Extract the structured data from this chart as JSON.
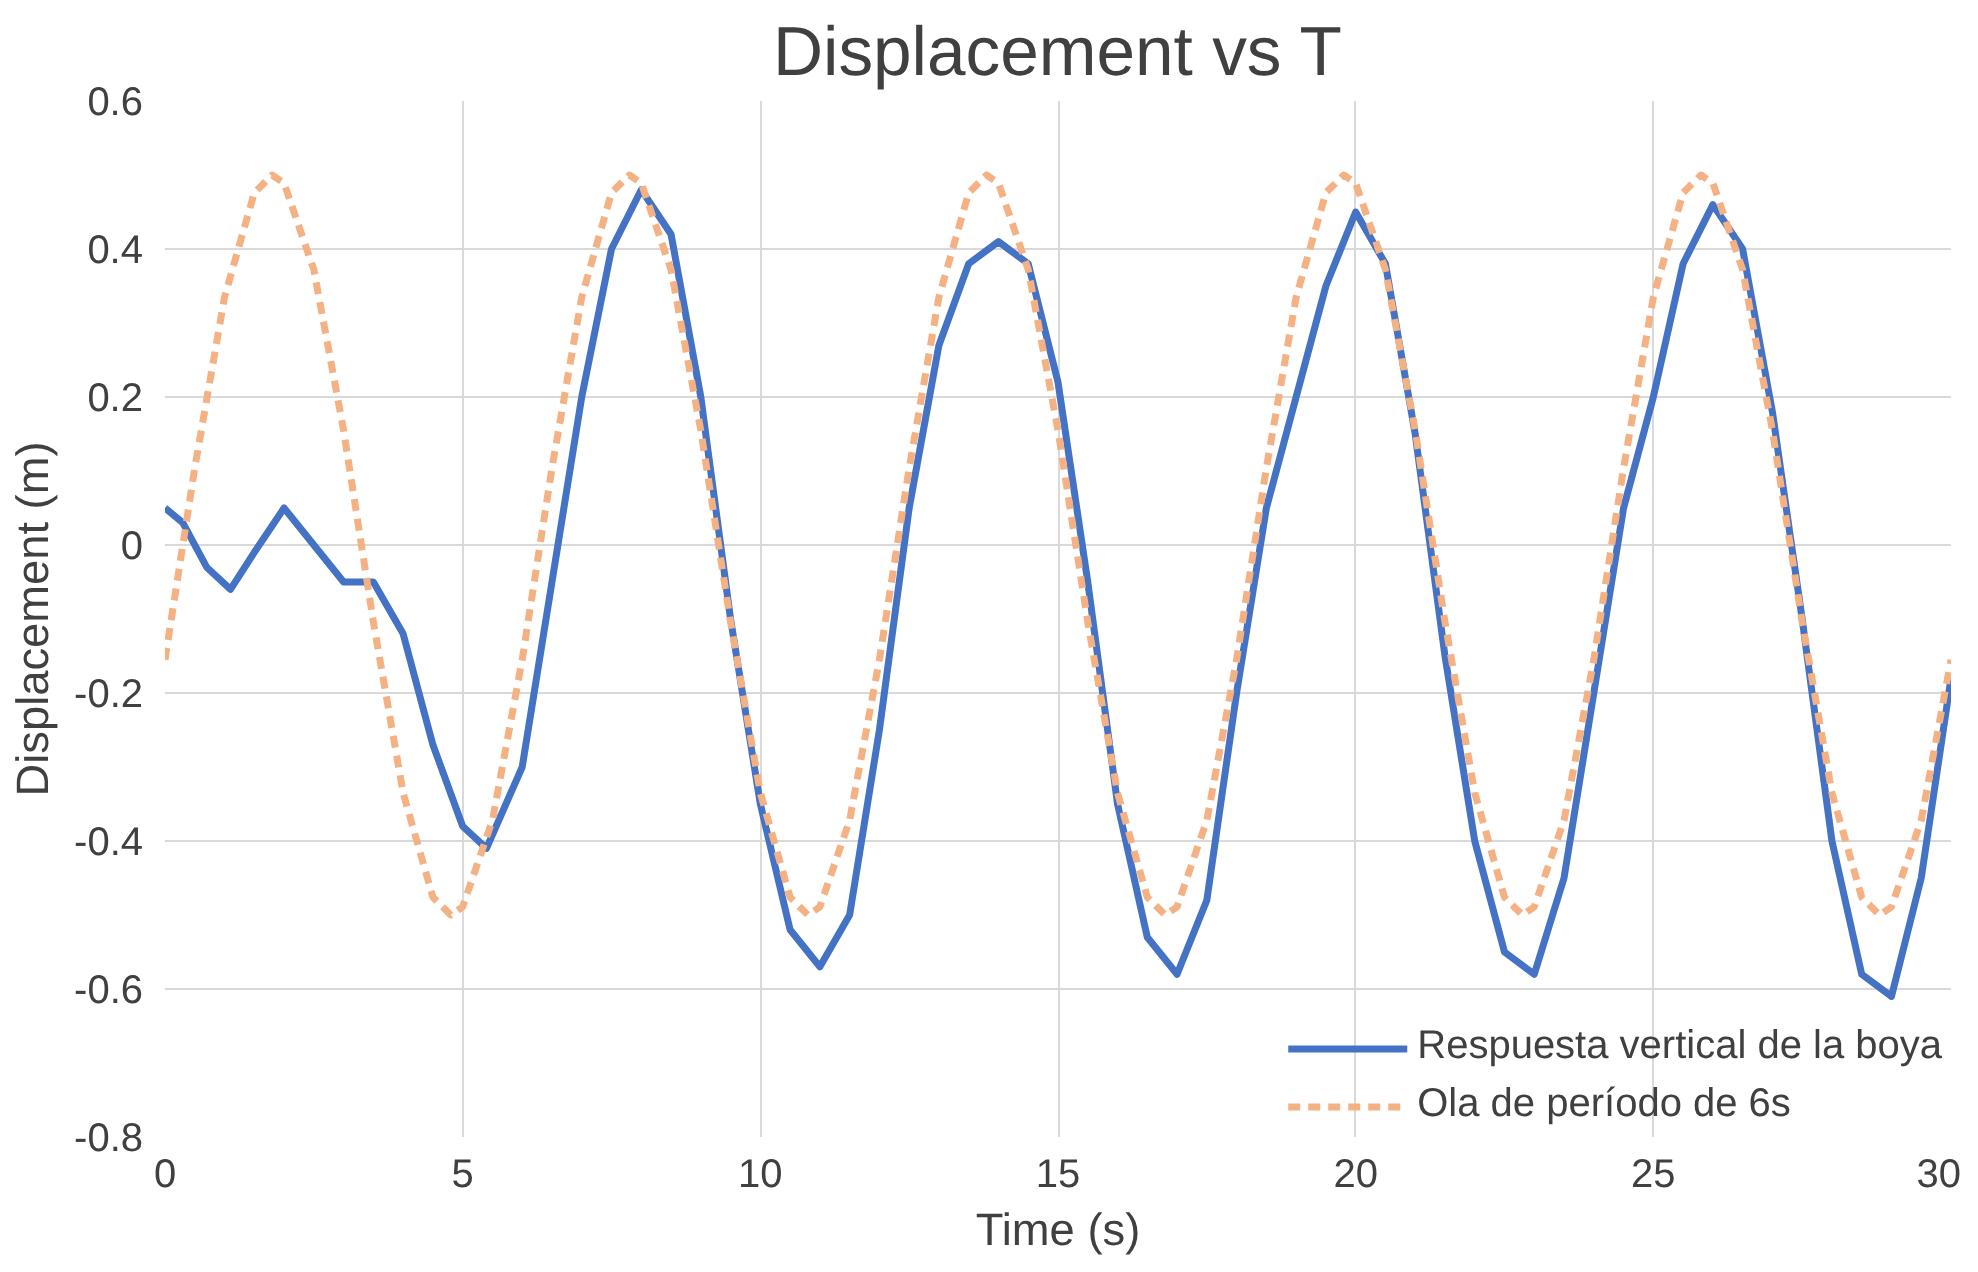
{
  "chart_data": {
    "type": "line",
    "title": "Displacement vs T",
    "xlabel": "Time (s)",
    "ylabel": "Displacement (m)",
    "xlim": [
      0,
      30
    ],
    "ylim": [
      -0.8,
      0.6
    ],
    "xticks": [
      0,
      5,
      10,
      15,
      20,
      25,
      30
    ],
    "yticks": [
      -0.8,
      -0.6,
      -0.4,
      -0.2,
      0,
      0.2,
      0.4,
      0.6
    ],
    "grid": true,
    "legend": "bottom right",
    "marker": "none",
    "series": [
      {
        "name": "Respuesta vertical de la boya",
        "color": "#4472c4",
        "line_style": "solid",
        "x": [
          0,
          0.3,
          0.7,
          1.1,
          1.5,
          2,
          2.5,
          3,
          3.5,
          4,
          4.5,
          5,
          5.4,
          6,
          6.5,
          7,
          7.5,
          8,
          8.5,
          9,
          9.5,
          10,
          10.5,
          11,
          11.5,
          12,
          12.5,
          13,
          13.5,
          14,
          14.5,
          15,
          15.5,
          16,
          16.5,
          17,
          17.5,
          18,
          18.5,
          19,
          19.5,
          20,
          20.5,
          21,
          21.5,
          22,
          22.5,
          23,
          23.5,
          24,
          24.5,
          25,
          25.5,
          26,
          26.5,
          27,
          27.5,
          28,
          28.5,
          29,
          29.5,
          30
        ],
        "values": [
          0.05,
          0.03,
          -0.03,
          -0.06,
          -0.01,
          0.05,
          0.0,
          -0.05,
          -0.05,
          -0.12,
          -0.27,
          -0.38,
          -0.41,
          -0.3,
          -0.05,
          0.2,
          0.4,
          0.48,
          0.42,
          0.2,
          -0.1,
          -0.35,
          -0.52,
          -0.57,
          -0.5,
          -0.25,
          0.05,
          0.27,
          0.38,
          0.41,
          0.38,
          0.22,
          -0.05,
          -0.35,
          -0.53,
          -0.58,
          -0.48,
          -0.2,
          0.05,
          0.2,
          0.35,
          0.45,
          0.38,
          0.15,
          -0.15,
          -0.4,
          -0.55,
          -0.58,
          -0.45,
          -0.2,
          0.05,
          0.2,
          0.38,
          0.46,
          0.4,
          0.18,
          -0.1,
          -0.4,
          -0.58,
          -0.61,
          -0.45,
          -0.18
        ]
      },
      {
        "name": "Ola de período de 6s",
        "color": "#f4b183",
        "line_style": "dashed",
        "x": [
          0,
          0.5,
          1,
          1.5,
          1.8,
          2,
          2.5,
          3,
          3.5,
          4,
          4.5,
          4.8,
          5,
          5.5,
          6,
          6.5,
          7,
          7.5,
          7.8,
          8,
          8.5,
          9,
          9.5,
          10,
          10.5,
          10.8,
          11,
          11.5,
          12,
          12.5,
          13,
          13.5,
          13.8,
          14,
          14.5,
          15,
          15.5,
          16,
          16.5,
          16.8,
          17,
          17.5,
          18,
          18.5,
          19,
          19.5,
          19.8,
          20,
          20.5,
          21,
          21.5,
          22,
          22.5,
          22.8,
          23,
          23.5,
          24,
          24.5,
          25,
          25.5,
          25.8,
          26,
          26.5,
          27,
          27.5,
          28,
          28.5,
          28.8,
          29,
          29.5,
          30
        ],
        "values": [
          -0.155,
          0.104,
          0.335,
          0.476,
          0.5,
          0.489,
          0.372,
          0.155,
          -0.104,
          -0.335,
          -0.476,
          -0.5,
          -0.489,
          -0.372,
          -0.155,
          0.104,
          0.335,
          0.476,
          0.5,
          0.489,
          0.372,
          0.155,
          -0.104,
          -0.335,
          -0.476,
          -0.5,
          -0.489,
          -0.372,
          -0.155,
          0.104,
          0.335,
          0.476,
          0.5,
          0.489,
          0.372,
          0.155,
          -0.104,
          -0.335,
          -0.476,
          -0.5,
          -0.489,
          -0.372,
          -0.155,
          0.104,
          0.335,
          0.476,
          0.5,
          0.489,
          0.372,
          0.155,
          -0.104,
          -0.335,
          -0.476,
          -0.5,
          -0.489,
          -0.372,
          -0.155,
          0.104,
          0.335,
          0.476,
          0.5,
          0.489,
          0.372,
          0.155,
          -0.104,
          -0.335,
          -0.476,
          -0.5,
          -0.489,
          -0.372,
          -0.155
        ]
      }
    ]
  }
}
